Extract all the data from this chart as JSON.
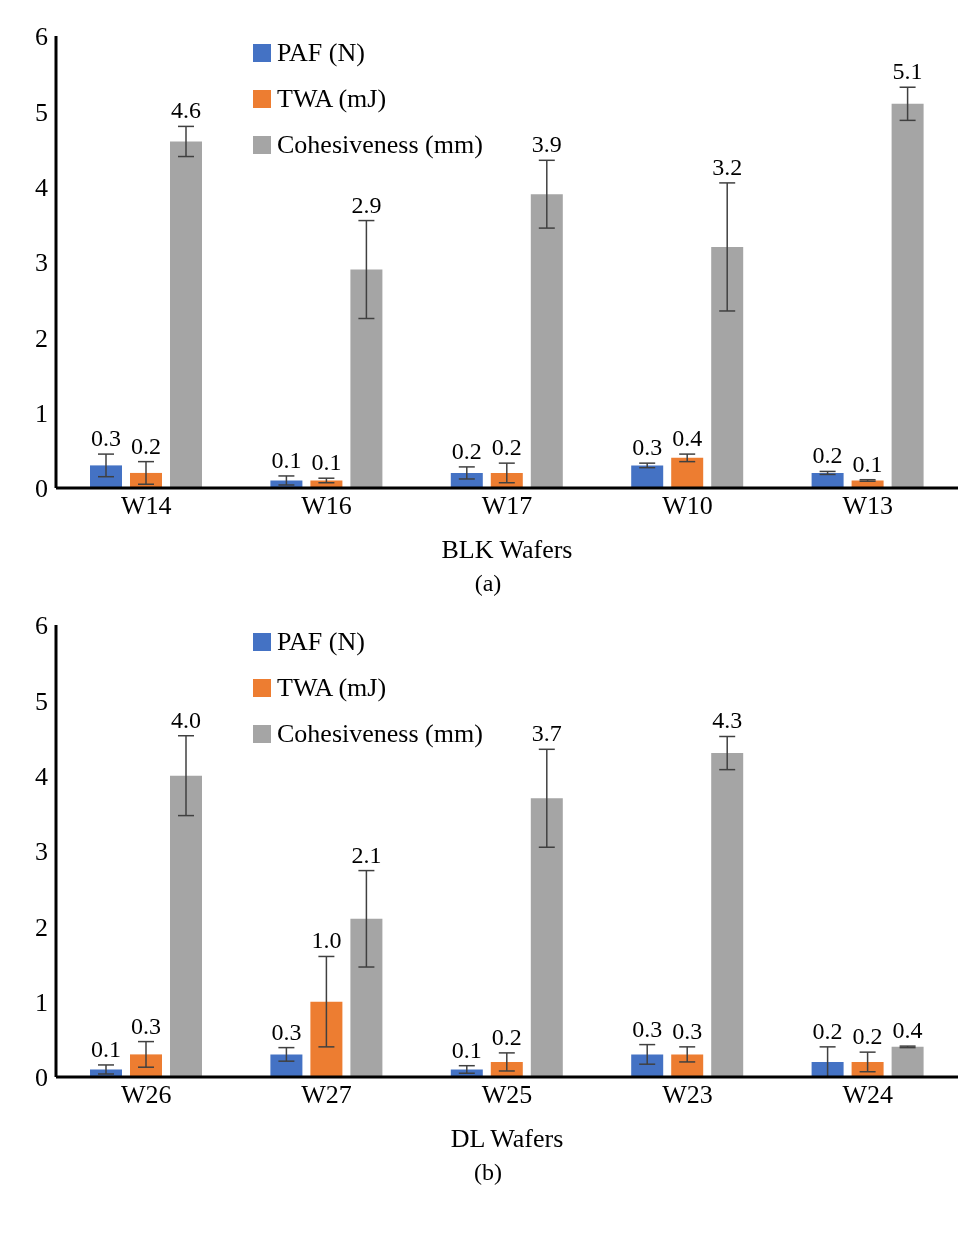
{
  "chart_data": [
    {
      "type": "bar",
      "xlabel": "BLK Wafers",
      "categories": [
        "W14",
        "W16",
        "W17",
        "W10",
        "W13"
      ],
      "ylim": [
        0,
        6
      ],
      "yticks": [
        0,
        1,
        2,
        3,
        4,
        5,
        6
      ],
      "grid": false,
      "legend": "top left",
      "annotations": [
        "(a)"
      ],
      "series": [
        {
          "name": "PAF (N)",
          "color": "#4472c4",
          "values": [
            0.3,
            0.1,
            0.2,
            0.3,
            0.2
          ],
          "errors": [
            0.15,
            0.06,
            0.08,
            0.03,
            0.02
          ],
          "value_labels": [
            "0.3",
            "0.1",
            "0.2",
            "0.3",
            "0.2"
          ]
        },
        {
          "name": "TWA (mJ)",
          "color": "#ed7d31",
          "values": [
            0.2,
            0.1,
            0.2,
            0.4,
            0.1
          ],
          "errors": [
            0.15,
            0.03,
            0.13,
            0.05,
            0.01
          ],
          "value_labels": [
            "0.2",
            "0.1",
            "0.2",
            "0.4",
            "0.1"
          ]
        },
        {
          "name": "Cohesiveness (mm)",
          "color": "#a5a5a5",
          "values": [
            4.6,
            2.9,
            3.9,
            3.2,
            5.1
          ],
          "errors": [
            0.2,
            0.65,
            0.45,
            0.85,
            0.22
          ],
          "value_labels": [
            "4.6",
            "2.9",
            "3.9",
            "3.2",
            "5.1"
          ]
        }
      ]
    },
    {
      "type": "bar",
      "xlabel": "DL Wafers",
      "categories": [
        "W26",
        "W27",
        "W25",
        "W23",
        "W24"
      ],
      "ylim": [
        0,
        6
      ],
      "yticks": [
        0,
        1,
        2,
        3,
        4,
        5,
        6
      ],
      "grid": false,
      "legend": "top left",
      "annotations": [
        "(b)"
      ],
      "series": [
        {
          "name": "PAF (N)",
          "color": "#4472c4",
          "values": [
            0.1,
            0.3,
            0.1,
            0.3,
            0.2
          ],
          "errors": [
            0.06,
            0.09,
            0.05,
            0.13,
            0.2
          ],
          "value_labels": [
            "0.1",
            "0.3",
            "0.1",
            "0.3",
            "0.2"
          ]
        },
        {
          "name": "TWA (mJ)",
          "color": "#ed7d31",
          "values": [
            0.3,
            1.0,
            0.2,
            0.3,
            0.2
          ],
          "errors": [
            0.17,
            0.6,
            0.12,
            0.1,
            0.13
          ],
          "value_labels": [
            "0.3",
            "1.0",
            "0.2",
            "0.3",
            "0.2"
          ]
        },
        {
          "name": "Cohesiveness (mm)",
          "color": "#a5a5a5",
          "values": [
            4.0,
            2.1,
            3.7,
            4.3,
            0.4
          ],
          "errors": [
            0.53,
            0.64,
            0.65,
            0.22,
            0.01
          ],
          "value_labels": [
            "4.0",
            "2.1",
            "3.7",
            "4.3",
            "0.4"
          ]
        }
      ]
    }
  ]
}
